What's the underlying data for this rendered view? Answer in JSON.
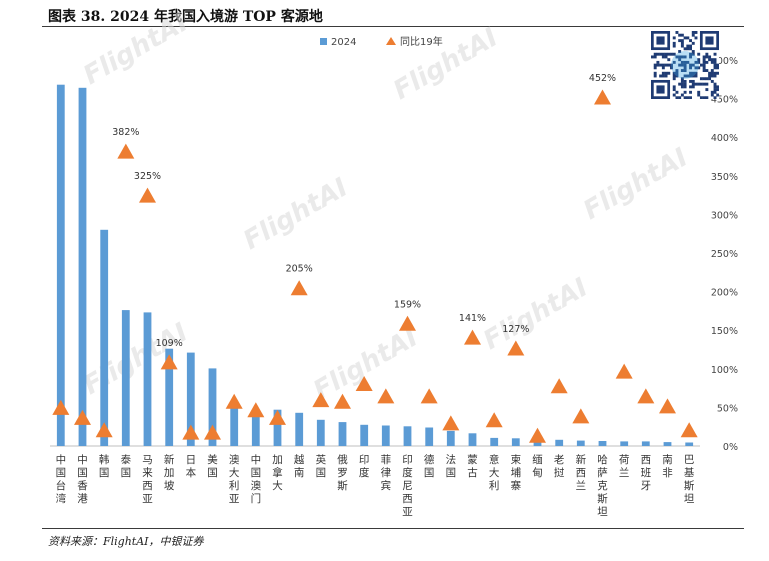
{
  "title": "图表 38. 2024 年我国入境游 TOP 客源地",
  "source": "资料来源：FlightAI，中银证券",
  "watermark": "FlightAI",
  "chart_data": {
    "type": "bar",
    "categories": [
      "中国台湾",
      "中国香港",
      "韩国",
      "泰国",
      "马来西亚",
      "新加坡",
      "日本",
      "美国",
      "澳大利亚",
      "中国澳门",
      "加拿大",
      "越南",
      "英国",
      "俄罗斯",
      "印度",
      "菲律宾",
      "印度尼西亚",
      "德国",
      "法国",
      "蒙古",
      "意大利",
      "柬埔寨",
      "缅甸",
      "老挝",
      "新西兰",
      "哈萨克斯坦",
      "荷兰",
      "西班牙",
      "南非",
      "巴基斯坦"
    ],
    "series": [
      {
        "name": "2024",
        "type": "bar",
        "axis": "left",
        "color": "#5B9BD5",
        "values": [
          936,
          928,
          560,
          352,
          346,
          252,
          242,
          201,
          101,
          88,
          94,
          86,
          68,
          62,
          55,
          53,
          51,
          48,
          39,
          33,
          21,
          20,
          10,
          16,
          14,
          13,
          12,
          12,
          10,
          9
        ]
      },
      {
        "name": "同比19年",
        "type": "scatter",
        "marker": "triangle",
        "axis": "right",
        "color": "#ED7D31",
        "values": [
          50,
          37,
          21,
          382,
          325,
          109,
          18,
          18,
          58,
          47,
          37,
          205,
          60,
          58,
          81,
          65,
          159,
          65,
          30,
          141,
          34,
          127,
          14,
          78,
          39,
          452,
          97,
          65,
          52,
          21
        ]
      }
    ],
    "data_labels": [
      {
        "series": "同比19年",
        "index": 3,
        "text": "382%"
      },
      {
        "series": "同比19年",
        "index": 4,
        "text": "325%"
      },
      {
        "series": "同比19年",
        "index": 5,
        "text": "109%"
      },
      {
        "series": "同比19年",
        "index": 11,
        "text": "205%"
      },
      {
        "series": "同比19年",
        "index": 16,
        "text": "159%"
      },
      {
        "series": "同比19年",
        "index": 19,
        "text": "141%"
      },
      {
        "series": "同比19年",
        "index": 21,
        "text": "127%"
      },
      {
        "series": "同比19年",
        "index": 25,
        "text": "452%"
      }
    ],
    "y_left_range": [
      0,
      1000
    ],
    "y_right_range": [
      0,
      500
    ],
    "y_right_ticks": [
      "0%",
      "50%",
      "100%",
      "150%",
      "200%",
      "250%",
      "300%",
      "350%",
      "400%",
      "450%",
      "500%"
    ],
    "legend_position": "top",
    "grid": false
  }
}
